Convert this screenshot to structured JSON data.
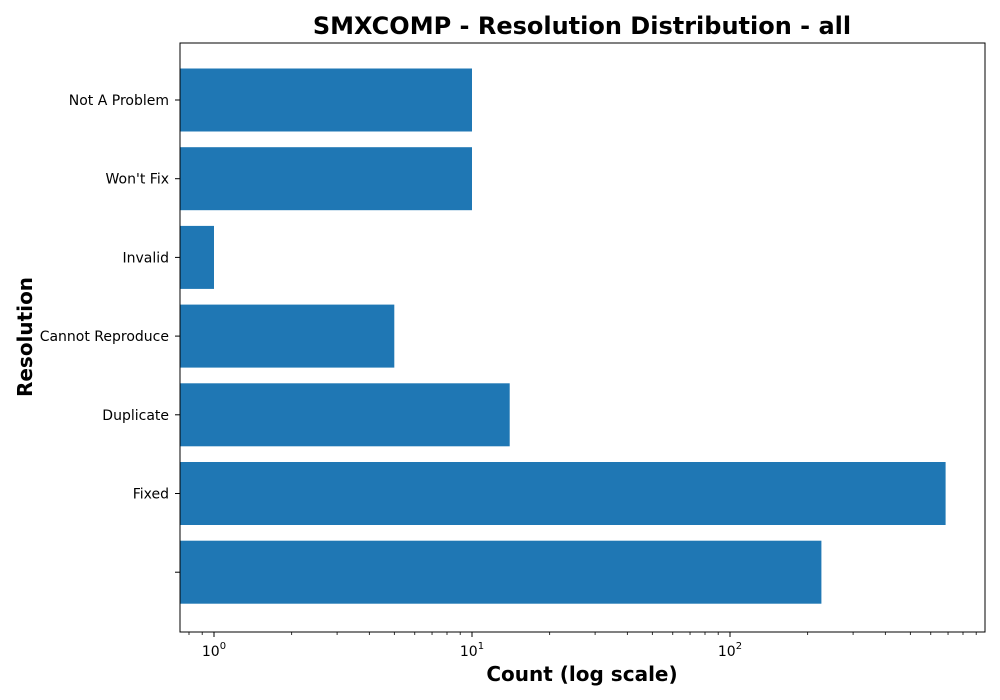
{
  "chart_data": {
    "type": "bar",
    "orientation": "horizontal",
    "title": "SMXCOMP - Resolution Distribution - all",
    "xlabel": "Count (log scale)",
    "ylabel": "Resolution",
    "x_scale": "log",
    "xlim": [
      0.75,
      1000
    ],
    "x_ticks": [
      {
        "value": 1,
        "base": "10",
        "exp": "0"
      },
      {
        "value": 10,
        "base": "10",
        "exp": "1"
      },
      {
        "value": 100,
        "base": "10",
        "exp": "2"
      }
    ],
    "categories": [
      "Not A Problem",
      "Won't Fix",
      "Invalid",
      "Cannot Reproduce",
      "Duplicate",
      "Fixed",
      ""
    ],
    "values": [
      10,
      10,
      1,
      5,
      14,
      685,
      226
    ],
    "bar_color": "#1f77b4",
    "grid": false
  }
}
